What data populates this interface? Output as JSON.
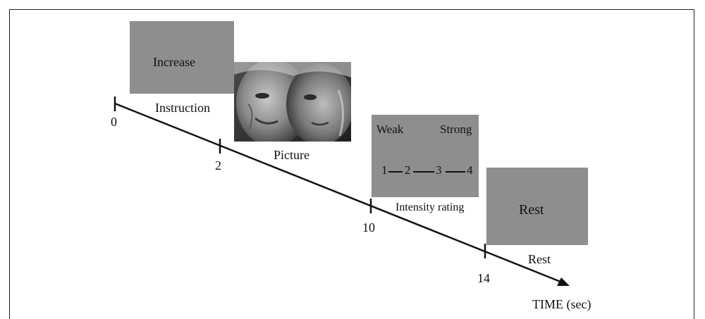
{
  "screens": {
    "instruction": {
      "text": "Increase",
      "caption": "Instruction"
    },
    "picture": {
      "caption": "Picture"
    },
    "rating": {
      "low_label": "Weak",
      "high_label": "Strong",
      "scale": [
        "1",
        "2",
        "3",
        "4"
      ],
      "caption": "Intensity rating"
    },
    "rest": {
      "text": "Rest",
      "caption": "Rest"
    }
  },
  "timeline": {
    "ticks": [
      "0",
      "2",
      "10",
      "14"
    ],
    "axis_label": "TIME (sec)"
  },
  "colors": {
    "screen_gray": "#8e8e8e",
    "line": "#111111"
  }
}
